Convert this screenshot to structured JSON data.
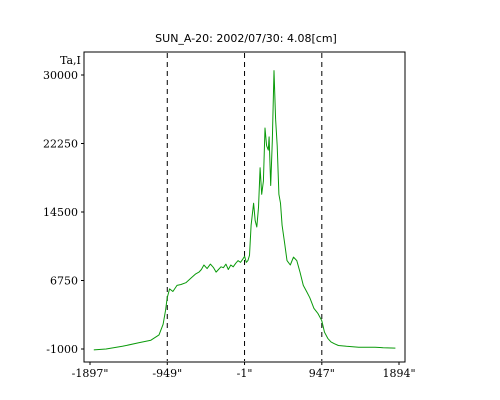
{
  "chart_data": {
    "type": "line",
    "title": "SUN_A-20: 2002/07/30: 4.08[cm]",
    "ylabel": "Ta,I",
    "xlabel": "",
    "xlim": [
      -1897,
      1894
    ],
    "ylim": [
      -1000,
      31500
    ],
    "x_ticks": [
      {
        "value": -1897,
        "label": "-1897\""
      },
      {
        "value": -949,
        "label": "-949\""
      },
      {
        "value": -1,
        "label": "-1\""
      },
      {
        "value": 947,
        "label": "947\""
      },
      {
        "value": 1894,
        "label": "1894\""
      }
    ],
    "y_ticks": [
      {
        "value": -1000,
        "label": "-1000"
      },
      {
        "value": 6750,
        "label": "6750"
      },
      {
        "value": 14500,
        "label": "14500"
      },
      {
        "value": 22250,
        "label": "22250"
      },
      {
        "value": 30000,
        "label": "30000"
      }
    ],
    "vlines": [
      -949,
      -1,
      947
    ],
    "grid": false,
    "series": [
      {
        "color": "#0a9a0a",
        "x": [
          -1850,
          -1700,
          -1500,
          -1300,
          -1150,
          -1050,
          -1000,
          -970,
          -950,
          -920,
          -880,
          -830,
          -780,
          -720,
          -660,
          -600,
          -560,
          -530,
          -500,
          -460,
          -420,
          -380,
          -350,
          -320,
          -290,
          -260,
          -230,
          -200,
          -170,
          -140,
          -110,
          -80,
          -50,
          -20,
          0,
          20,
          40,
          60,
          80,
          110,
          130,
          150,
          170,
          190,
          210,
          230,
          250,
          270,
          290,
          300,
          320,
          340,
          360,
          380,
          400,
          420,
          440,
          460,
          490,
          520,
          560,
          600,
          640,
          680,
          720,
          760,
          800,
          850,
          900,
          947,
          980,
          1020,
          1060,
          1100,
          1150,
          1250,
          1400,
          1600,
          1700,
          1850
        ],
        "y": [
          -1100,
          -1000,
          -700,
          -300,
          0,
          600,
          1800,
          3400,
          4800,
          5800,
          5500,
          6200,
          6300,
          6500,
          7000,
          7500,
          7700,
          8000,
          8500,
          8100,
          8600,
          8200,
          7700,
          8000,
          8300,
          8200,
          8600,
          8000,
          8500,
          8300,
          8700,
          9000,
          8800,
          9200,
          9500,
          8800,
          9000,
          9600,
          13000,
          15500,
          13500,
          12800,
          15000,
          19500,
          16500,
          18000,
          24000,
          22000,
          21500,
          23000,
          17500,
          22500,
          30500,
          25000,
          22000,
          16500,
          15500,
          13000,
          11000,
          9000,
          8500,
          9400,
          9000,
          7700,
          6200,
          5500,
          4800,
          3600,
          3000,
          2200,
          900,
          200,
          -200,
          -400,
          -600,
          -700,
          -800,
          -800,
          -850,
          -900
        ]
      }
    ]
  }
}
